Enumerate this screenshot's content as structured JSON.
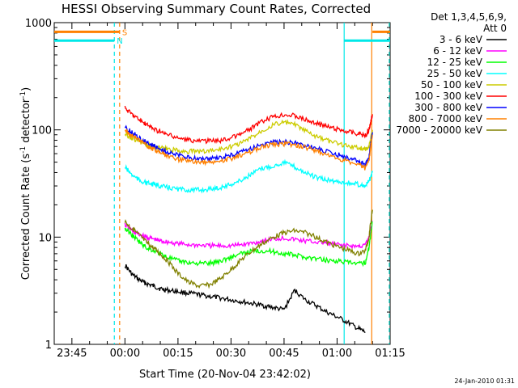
{
  "chart_data": {
    "type": "line",
    "title": "HESSI Observing Summary Count Rates, Corrected",
    "xlabel": "Start Time (20-Nov-04 23:42:02)",
    "ylabel_main": "Corrected Count Rate (s",
    "ylabel_sup1": "-1",
    "ylabel_mid": " detector",
    "ylabel_sup2": "-1",
    "ylabel_end": ")",
    "yscale": "log",
    "ylim": [
      1,
      1000
    ],
    "xlim_minutes": [
      -20,
      75
    ],
    "x_ticks": [
      {
        "minutes": -15,
        "label": "23:45"
      },
      {
        "minutes": 0,
        "label": "00:00"
      },
      {
        "minutes": 15,
        "label": "00:15"
      },
      {
        "minutes": 30,
        "label": "00:30"
      },
      {
        "minutes": 45,
        "label": "00:45"
      },
      {
        "minutes": 60,
        "label": "01:00"
      },
      {
        "minutes": 75,
        "label": "01:15"
      }
    ],
    "y_ticks": [
      {
        "value": 1,
        "label": "1"
      },
      {
        "value": 10,
        "label": "10"
      },
      {
        "value": 100,
        "label": "100"
      },
      {
        "value": 1000,
        "label": "1000"
      }
    ],
    "legend_header": [
      "Det 1,3,4,5,6,9,",
      "Att 0"
    ],
    "legend_placement": "right",
    "series": [
      {
        "name": "3 - 6 keV",
        "color": "#000000",
        "x": [
          0,
          2,
          4,
          6,
          8,
          10,
          12,
          15,
          18,
          21,
          24,
          27,
          30,
          33,
          36,
          39,
          42,
          45,
          48,
          51,
          54,
          57,
          60,
          63,
          66,
          68
        ],
        "y": [
          5.5,
          4.5,
          4,
          3.7,
          3.5,
          3.3,
          3.2,
          3.1,
          3,
          2.9,
          2.8,
          2.7,
          2.6,
          2.5,
          2.4,
          2.3,
          2.2,
          2.1,
          3.2,
          2.6,
          2.3,
          2,
          1.8,
          1.6,
          1.4,
          1.3
        ]
      },
      {
        "name": "6 - 12 keV",
        "color": "#ff00ff",
        "x": [
          0,
          2,
          4,
          6,
          8,
          10,
          12,
          15,
          18,
          21,
          24,
          27,
          30,
          33,
          36,
          39,
          42,
          45,
          48,
          51,
          54,
          57,
          60,
          63,
          66,
          68,
          69,
          70
        ],
        "y": [
          13,
          11.5,
          10.5,
          10,
          9.6,
          9.2,
          9,
          8.7,
          8.5,
          8.4,
          8.3,
          8.3,
          8.3,
          8.5,
          8.8,
          9.2,
          9.6,
          9.8,
          9.5,
          9.2,
          9,
          8.8,
          8.5,
          8.3,
          8.2,
          8.4,
          10,
          14
        ]
      },
      {
        "name": "12 - 25 keV",
        "color": "#00ff00",
        "x": [
          0,
          2,
          4,
          6,
          8,
          10,
          12,
          15,
          18,
          21,
          24,
          27,
          30,
          33,
          36,
          39,
          42,
          45,
          48,
          51,
          54,
          57,
          60,
          63,
          66,
          68,
          69,
          70
        ],
        "y": [
          12,
          10.5,
          9,
          8,
          7.5,
          7,
          6.5,
          6,
          5.8,
          5.7,
          5.7,
          6,
          6.5,
          7,
          7.4,
          7.5,
          7.3,
          7,
          6.8,
          6.5,
          6.3,
          6.1,
          6,
          5.8,
          5.6,
          5.8,
          8,
          14
        ]
      },
      {
        "name": "25 - 50 keV",
        "color": "#00ffff",
        "x": [
          0,
          2,
          4,
          6,
          8,
          10,
          12,
          15,
          18,
          21,
          24,
          27,
          30,
          33,
          36,
          39,
          42,
          45,
          48,
          51,
          54,
          57,
          60,
          63,
          66,
          68,
          69,
          70
        ],
        "y": [
          45,
          38,
          34,
          32,
          31,
          30,
          29,
          28,
          27.5,
          27.5,
          28,
          29,
          31,
          34,
          39,
          44,
          46,
          50,
          45,
          40,
          36,
          34,
          33,
          32,
          31,
          30,
          33,
          40
        ]
      },
      {
        "name": "50 - 100 keV",
        "color": "#cccc00",
        "x": [
          0,
          2,
          4,
          6,
          8,
          10,
          12,
          15,
          18,
          21,
          24,
          27,
          30,
          33,
          36,
          39,
          42,
          45,
          48,
          51,
          54,
          57,
          60,
          63,
          66,
          68,
          69,
          70
        ],
        "y": [
          92,
          84,
          78,
          73,
          70,
          68,
          66,
          64,
          63,
          63,
          64,
          66,
          70,
          76,
          86,
          100,
          112,
          118,
          112,
          98,
          86,
          80,
          75,
          71,
          68,
          66,
          70,
          100
        ]
      },
      {
        "name": "100 - 300 keV",
        "color": "#ff0000",
        "x": [
          0,
          2,
          4,
          6,
          8,
          10,
          12,
          15,
          18,
          21,
          24,
          27,
          30,
          33,
          36,
          39,
          42,
          45,
          48,
          51,
          54,
          57,
          60,
          63,
          66,
          68,
          69,
          70
        ],
        "y": [
          160,
          140,
          125,
          112,
          103,
          96,
          90,
          84,
          80,
          79,
          79,
          80,
          84,
          92,
          105,
          120,
          132,
          140,
          136,
          125,
          115,
          108,
          102,
          97,
          92,
          88,
          100,
          140
        ]
      },
      {
        "name": "300 - 800 keV",
        "color": "#0000ff",
        "x": [
          0,
          2,
          4,
          6,
          8,
          10,
          12,
          15,
          18,
          21,
          24,
          27,
          30,
          33,
          36,
          39,
          42,
          45,
          48,
          51,
          54,
          57,
          60,
          63,
          66,
          68,
          69,
          70
        ],
        "y": [
          105,
          95,
          85,
          77,
          71,
          66,
          62,
          58,
          55,
          54,
          54,
          55,
          58,
          62,
          68,
          73,
          76,
          77,
          76,
          72,
          68,
          63,
          59,
          55,
          51,
          47,
          55,
          95
        ]
      },
      {
        "name": "800 - 7000 keV",
        "color": "#ff8000",
        "x": [
          0,
          2,
          4,
          6,
          8,
          10,
          12,
          15,
          18,
          21,
          24,
          27,
          30,
          33,
          36,
          39,
          42,
          45,
          48,
          51,
          54,
          57,
          60,
          63,
          66,
          68,
          69,
          70
        ],
        "y": [
          98,
          88,
          79,
          72,
          66,
          61,
          57,
          53,
          51,
          50,
          50,
          51,
          54,
          58,
          64,
          70,
          73,
          74,
          73,
          69,
          64,
          59,
          55,
          51,
          47,
          44,
          52,
          90
        ]
      },
      {
        "name": "7000 - 20000 keV",
        "color": "#808000",
        "x": [
          0,
          2,
          4,
          6,
          8,
          10,
          12,
          15,
          18,
          21,
          24,
          27,
          30,
          33,
          36,
          39,
          42,
          45,
          48,
          51,
          54,
          57,
          60,
          63,
          66,
          68,
          69,
          70
        ],
        "y": [
          14,
          12,
          10.5,
          9,
          8,
          7,
          6,
          4.6,
          3.8,
          3.5,
          3.6,
          4.1,
          5,
          6.2,
          7.5,
          8.8,
          10,
          11,
          11.5,
          11,
          10,
          9,
          8.2,
          7.6,
          7,
          7.5,
          10,
          18
        ]
      }
    ],
    "flags": [
      {
        "label": "S",
        "color": "#ff8000",
        "start_min": -20,
        "end_min": -1.5,
        "flag_value": 820
      },
      {
        "label": "N",
        "color": "#00e8e8",
        "start_min": -20,
        "end_min": -3,
        "flag_value": 680
      },
      {
        "label": "",
        "color": "#ff8000",
        "start_min": 70,
        "end_min": 75,
        "flag_value": 820
      },
      {
        "label": "",
        "color": "#00e8e8",
        "start_min": 62,
        "end_min": 75,
        "flag_value": 680
      }
    ],
    "vertical_lines": [
      {
        "minutes": -3,
        "color": "#00e8e8",
        "style": "dashed"
      },
      {
        "minutes": -1.5,
        "color": "#ff8000",
        "style": "dashed"
      },
      {
        "minutes": 62,
        "color": "#00e8e8",
        "style": "solid"
      },
      {
        "minutes": 69.8,
        "color": "#ff8000",
        "style": "solid"
      },
      {
        "minutes": 75.8,
        "color": "#ff8000",
        "style": "dashed"
      },
      {
        "minutes": 76.3,
        "color": "#00e8e8",
        "style": "dashed"
      }
    ],
    "footer_date": "24-Jan-2010 01:31"
  }
}
